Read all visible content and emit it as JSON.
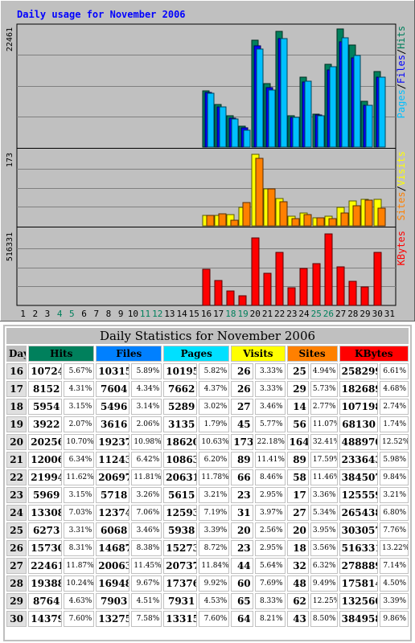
{
  "chart_data": {
    "type": "bar",
    "title": "Daily usage for November 2006",
    "days": [
      "1",
      "2",
      "3",
      "4",
      "5",
      "6",
      "7",
      "8",
      "9",
      "10",
      "11",
      "12",
      "13",
      "14",
      "15",
      "16",
      "17",
      "18",
      "19",
      "20",
      "21",
      "22",
      "23",
      "24",
      "25",
      "26",
      "27",
      "28",
      "29",
      "30",
      "31"
    ],
    "weekend_days": [
      4,
      5,
      11,
      12,
      18,
      19,
      25,
      26
    ],
    "panels": [
      {
        "name": "hits-files-pages",
        "max_label": "22461",
        "ylim": [
          0,
          22461
        ],
        "legend": [
          "Pages",
          "Files",
          "Hits"
        ],
        "series": [
          {
            "name": "Hits",
            "color": "#00805c",
            "values": [
              0,
              0,
              0,
              0,
              0,
              0,
              0,
              0,
              0,
              0,
              0,
              0,
              0,
              0,
              0,
              10724,
              8152,
              5954,
              3922,
              20256,
              12006,
              21994,
              5969,
              13308,
              6273,
              15730,
              22461,
              19388,
              8764,
              14379,
              0
            ]
          },
          {
            "name": "Files",
            "color": "#0000ff",
            "values": [
              0,
              0,
              0,
              0,
              0,
              0,
              0,
              0,
              0,
              0,
              0,
              0,
              0,
              0,
              0,
              10315,
              7604,
              5496,
              3616,
              19237,
              11243,
              20697,
              5718,
              12374,
              6068,
              14687,
              20063,
              16948,
              7903,
              13275,
              0
            ]
          },
          {
            "name": "Pages",
            "color": "#00c0ff",
            "values": [
              0,
              0,
              0,
              0,
              0,
              0,
              0,
              0,
              0,
              0,
              0,
              0,
              0,
              0,
              0,
              10195,
              7662,
              5289,
              3135,
              18620,
              10863,
              20631,
              5615,
              12593,
              5938,
              15273,
              20737,
              17376,
              7931,
              13315,
              0
            ]
          }
        ]
      },
      {
        "name": "sites-visits",
        "max_label": "173",
        "ylim": [
          0,
          173
        ],
        "legend": [
          "Sites",
          "Visits"
        ],
        "series": [
          {
            "name": "Visits",
            "color": "#ffff00",
            "values": [
              0,
              0,
              0,
              0,
              0,
              0,
              0,
              0,
              0,
              0,
              0,
              0,
              0,
              0,
              0,
              26,
              26,
              27,
              45,
              173,
              89,
              66,
              23,
              31,
              20,
              23,
              44,
              60,
              65,
              64,
              0
            ]
          },
          {
            "name": "Sites",
            "color": "#ff8000",
            "values": [
              0,
              0,
              0,
              0,
              0,
              0,
              0,
              0,
              0,
              0,
              0,
              0,
              0,
              0,
              0,
              25,
              29,
              14,
              56,
              164,
              89,
              58,
              17,
              27,
              20,
              18,
              32,
              48,
              62,
              43,
              0
            ]
          }
        ]
      },
      {
        "name": "kbytes",
        "max_label": "516331",
        "ylim": [
          0,
          516331
        ],
        "legend": [
          "KBytes"
        ],
        "series": [
          {
            "name": "KBytes",
            "color": "#ff0000",
            "values": [
              0,
              0,
              0,
              0,
              0,
              0,
              0,
              0,
              0,
              0,
              0,
              0,
              0,
              0,
              0,
              258299,
              182689,
              107198,
              68130,
              488970,
              233643,
              384507,
              125559,
              265438,
              303057,
              516331,
              278889,
              175814,
              132560,
              384958,
              0
            ]
          }
        ]
      }
    ]
  },
  "table": {
    "title": "Daily Statistics for November 2006",
    "headers": [
      {
        "label": "Day",
        "color": "#c0c0c0"
      },
      {
        "label": "Hits",
        "color": "#00805c"
      },
      {
        "label": "Files",
        "color": "#0080ff"
      },
      {
        "label": "Pages",
        "color": "#00e0ff"
      },
      {
        "label": "Visits",
        "color": "#ffff00"
      },
      {
        "label": "Sites",
        "color": "#ff8000"
      },
      {
        "label": "KBytes",
        "color": "#ff0000"
      }
    ],
    "rows": [
      [
        "16",
        "10724",
        "5.67%",
        "10315",
        "5.89%",
        "10195",
        "5.82%",
        "26",
        "3.33%",
        "25",
        "4.94%",
        "258299",
        "6.61%"
      ],
      [
        "17",
        "8152",
        "4.31%",
        "7604",
        "4.34%",
        "7662",
        "4.37%",
        "26",
        "3.33%",
        "29",
        "5.73%",
        "182689",
        "4.68%"
      ],
      [
        "18",
        "5954",
        "3.15%",
        "5496",
        "3.14%",
        "5289",
        "3.02%",
        "27",
        "3.46%",
        "14",
        "2.77%",
        "107198",
        "2.74%"
      ],
      [
        "19",
        "3922",
        "2.07%",
        "3616",
        "2.06%",
        "3135",
        "1.79%",
        "45",
        "5.77%",
        "56",
        "11.07%",
        "68130",
        "1.74%"
      ],
      [
        "20",
        "20256",
        "10.70%",
        "19237",
        "10.98%",
        "18620",
        "10.63%",
        "173",
        "22.18%",
        "164",
        "32.41%",
        "488970",
        "12.52%"
      ],
      [
        "21",
        "12006",
        "6.34%",
        "11243",
        "6.42%",
        "10863",
        "6.20%",
        "89",
        "11.41%",
        "89",
        "17.59%",
        "233643",
        "5.98%"
      ],
      [
        "22",
        "21994",
        "11.62%",
        "20697",
        "11.81%",
        "20631",
        "11.78%",
        "66",
        "8.46%",
        "58",
        "11.46%",
        "384507",
        "9.84%"
      ],
      [
        "23",
        "5969",
        "3.15%",
        "5718",
        "3.26%",
        "5615",
        "3.21%",
        "23",
        "2.95%",
        "17",
        "3.36%",
        "125559",
        "3.21%"
      ],
      [
        "24",
        "13308",
        "7.03%",
        "12374",
        "7.06%",
        "12593",
        "7.19%",
        "31",
        "3.97%",
        "27",
        "5.34%",
        "265438",
        "6.80%"
      ],
      [
        "25",
        "6273",
        "3.31%",
        "6068",
        "3.46%",
        "5938",
        "3.39%",
        "20",
        "2.56%",
        "20",
        "3.95%",
        "303057",
        "7.76%"
      ],
      [
        "26",
        "15730",
        "8.31%",
        "14687",
        "8.38%",
        "15273",
        "8.72%",
        "23",
        "2.95%",
        "18",
        "3.56%",
        "516331",
        "13.22%"
      ],
      [
        "27",
        "22461",
        "11.87%",
        "20063",
        "11.45%",
        "20737",
        "11.84%",
        "44",
        "5.64%",
        "32",
        "6.32%",
        "278889",
        "7.14%"
      ],
      [
        "28",
        "19388",
        "10.24%",
        "16948",
        "9.67%",
        "17376",
        "9.92%",
        "60",
        "7.69%",
        "48",
        "9.49%",
        "175814",
        "4.50%"
      ],
      [
        "29",
        "8764",
        "4.63%",
        "7903",
        "4.51%",
        "7931",
        "4.53%",
        "65",
        "8.33%",
        "62",
        "12.25%",
        "132560",
        "3.39%"
      ],
      [
        "30",
        "14379",
        "7.60%",
        "13275",
        "7.58%",
        "13315",
        "7.60%",
        "64",
        "8.21%",
        "43",
        "8.50%",
        "384958",
        "9.86%"
      ]
    ]
  }
}
